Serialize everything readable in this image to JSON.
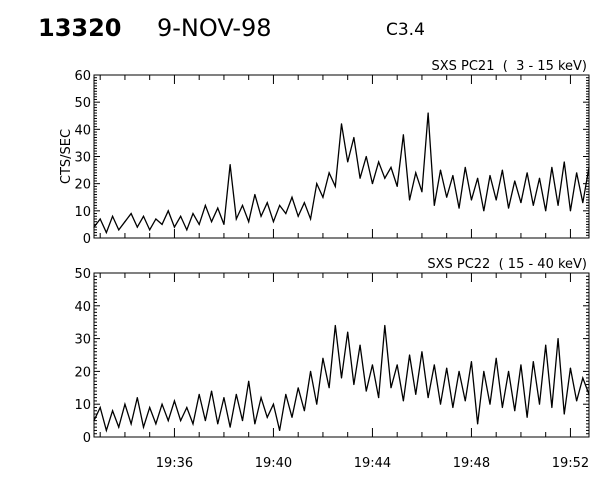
{
  "header": {
    "id": "13320",
    "date": "9-NOV-98",
    "class": "C3.4"
  },
  "chart_data": [
    {
      "type": "line",
      "title": "SXS PC21  (  3 - 15 keV)",
      "ylabel": "CTS/SEC",
      "xlabel": "",
      "ylim": [
        0,
        60
      ],
      "yticks": [
        "0",
        "10",
        "20",
        "30",
        "40",
        "50",
        "60"
      ],
      "xlim": [
        "19:32:45",
        "19:52:45"
      ],
      "xticks": [],
      "grid": false,
      "x": [
        "19:32:45",
        "19:33:00",
        "19:33:15",
        "19:33:30",
        "19:33:45",
        "19:34:00",
        "19:34:15",
        "19:34:30",
        "19:34:45",
        "19:35:00",
        "19:35:15",
        "19:35:30",
        "19:35:45",
        "19:36:00",
        "19:36:15",
        "19:36:30",
        "19:36:45",
        "19:37:00",
        "19:37:15",
        "19:37:30",
        "19:37:45",
        "19:38:00",
        "19:38:15",
        "19:38:30",
        "19:38:45",
        "19:39:00",
        "19:39:15",
        "19:39:30",
        "19:39:45",
        "19:40:00",
        "19:40:15",
        "19:40:30",
        "19:40:45",
        "19:41:00",
        "19:41:15",
        "19:41:30",
        "19:41:45",
        "19:42:00",
        "19:42:15",
        "19:42:30",
        "19:42:45",
        "19:43:00",
        "19:43:15",
        "19:43:30",
        "19:43:45",
        "19:44:00",
        "19:44:15",
        "19:44:30",
        "19:44:45",
        "19:45:00",
        "19:45:15",
        "19:45:30",
        "19:45:45",
        "19:46:00",
        "19:46:15",
        "19:46:30",
        "19:46:45",
        "19:47:00",
        "19:47:15",
        "19:47:30",
        "19:47:45",
        "19:48:00",
        "19:48:15",
        "19:48:30",
        "19:48:45",
        "19:49:00",
        "19:49:15",
        "19:49:30",
        "19:49:45",
        "19:50:00",
        "19:50:15",
        "19:50:30",
        "19:50:45",
        "19:51:00",
        "19:51:15",
        "19:51:30",
        "19:51:45",
        "19:52:00",
        "19:52:15",
        "19:52:30",
        "19:52:45"
      ],
      "values": [
        4,
        7,
        2,
        8,
        3,
        6,
        9,
        4,
        8,
        3,
        7,
        5,
        10,
        4,
        8,
        3,
        9,
        5,
        12,
        6,
        11,
        5,
        27,
        7,
        12,
        6,
        16,
        8,
        13,
        6,
        12,
        9,
        15,
        8,
        13,
        7,
        20,
        15,
        24,
        19,
        42,
        28,
        37,
        22,
        30,
        20,
        28,
        22,
        26,
        19,
        38,
        14,
        24,
        17,
        46,
        12,
        25,
        15,
        23,
        11,
        26,
        14,
        22,
        10,
        23,
        14,
        25,
        11,
        21,
        13,
        24,
        12,
        22,
        10,
        26,
        12,
        28,
        10,
        24,
        13,
        26
      ],
      "color": "#000000"
    },
    {
      "type": "line",
      "title": "SXS PC22  ( 15 - 40 keV)",
      "ylabel": "",
      "xlabel": "",
      "ylim": [
        0,
        50
      ],
      "yticks": [
        "0",
        "10",
        "20",
        "30",
        "40",
        "50"
      ],
      "xlim": [
        "19:32:45",
        "19:52:45"
      ],
      "xticks": [
        "19:36",
        "19:40",
        "19:44",
        "19:48",
        "19:52"
      ],
      "grid": false,
      "x": [
        "19:32:45",
        "19:33:00",
        "19:33:15",
        "19:33:30",
        "19:33:45",
        "19:34:00",
        "19:34:15",
        "19:34:30",
        "19:34:45",
        "19:35:00",
        "19:35:15",
        "19:35:30",
        "19:35:45",
        "19:36:00",
        "19:36:15",
        "19:36:30",
        "19:36:45",
        "19:37:00",
        "19:37:15",
        "19:37:30",
        "19:37:45",
        "19:38:00",
        "19:38:15",
        "19:38:30",
        "19:38:45",
        "19:39:00",
        "19:39:15",
        "19:39:30",
        "19:39:45",
        "19:40:00",
        "19:40:15",
        "19:40:30",
        "19:40:45",
        "19:41:00",
        "19:41:15",
        "19:41:30",
        "19:41:45",
        "19:42:00",
        "19:42:15",
        "19:42:30",
        "19:42:45",
        "19:43:00",
        "19:43:15",
        "19:43:30",
        "19:43:45",
        "19:44:00",
        "19:44:15",
        "19:44:30",
        "19:44:45",
        "19:45:00",
        "19:45:15",
        "19:45:30",
        "19:45:45",
        "19:46:00",
        "19:46:15",
        "19:46:30",
        "19:46:45",
        "19:47:00",
        "19:47:15",
        "19:47:30",
        "19:47:45",
        "19:48:00",
        "19:48:15",
        "19:48:30",
        "19:48:45",
        "19:49:00",
        "19:49:15",
        "19:49:30",
        "19:49:45",
        "19:50:00",
        "19:50:15",
        "19:50:30",
        "19:50:45",
        "19:51:00",
        "19:51:15",
        "19:51:30",
        "19:51:45",
        "19:52:00",
        "19:52:15",
        "19:52:30",
        "19:52:45"
      ],
      "values": [
        5,
        9,
        2,
        8,
        3,
        10,
        4,
        12,
        3,
        9,
        4,
        10,
        5,
        11,
        5,
        9,
        4,
        13,
        5,
        14,
        4,
        12,
        3,
        13,
        5,
        17,
        4,
        12,
        6,
        10,
        2,
        13,
        6,
        15,
        8,
        20,
        10,
        24,
        15,
        34,
        18,
        32,
        16,
        28,
        14,
        22,
        12,
        34,
        15,
        22,
        11,
        25,
        13,
        26,
        12,
        22,
        10,
        21,
        9,
        20,
        11,
        23,
        4,
        20,
        10,
        24,
        9,
        20,
        8,
        22,
        6,
        23,
        10,
        28,
        9,
        30,
        7,
        21,
        11,
        18,
        13
      ],
      "color": "#000000"
    }
  ]
}
